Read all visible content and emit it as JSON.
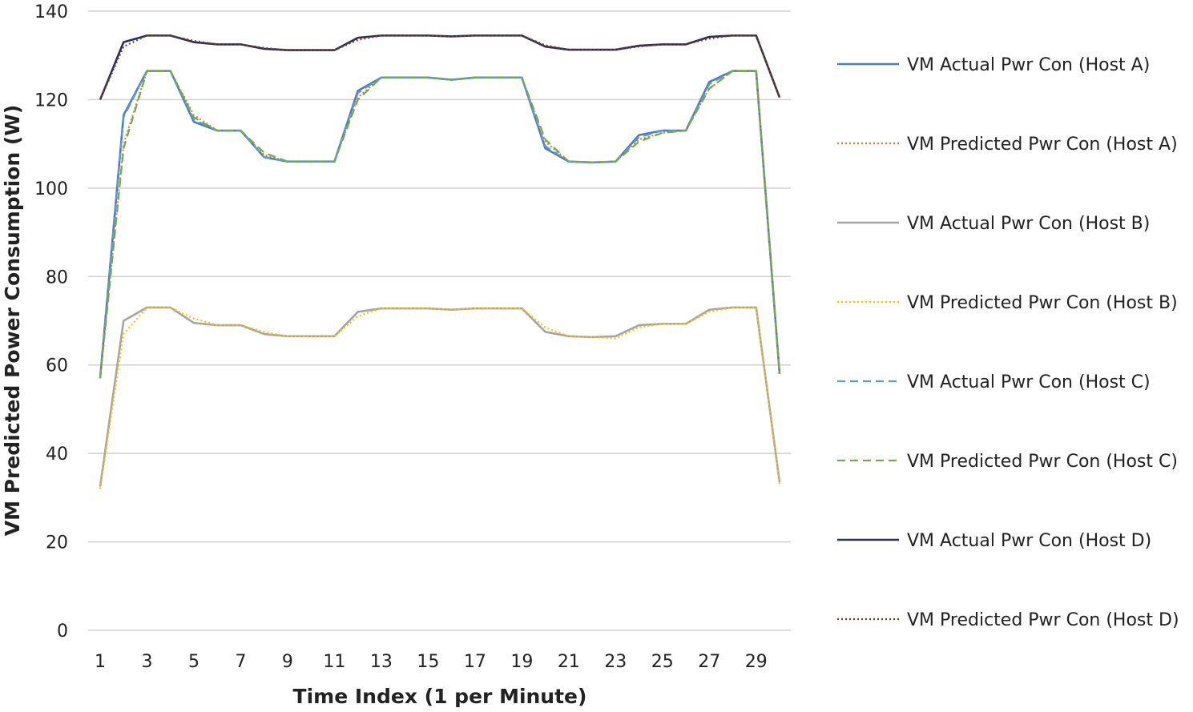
{
  "chart_data": {
    "type": "line",
    "xlabel": "Time Index (1 per Minute)",
    "ylabel": "VM Predicted Power Consumption (W)",
    "ylim": [
      0,
      140
    ],
    "xlim": [
      1,
      30
    ],
    "y_ticks": [
      0,
      20,
      40,
      60,
      80,
      100,
      120,
      140
    ],
    "x_ticks": [
      1,
      3,
      5,
      7,
      9,
      11,
      13,
      15,
      17,
      19,
      21,
      23,
      25,
      27,
      29
    ],
    "grid": true,
    "legend_position": "right",
    "x": [
      1,
      2,
      3,
      4,
      5,
      6,
      7,
      8,
      9,
      10,
      11,
      12,
      13,
      14,
      15,
      16,
      17,
      18,
      19,
      20,
      21,
      22,
      23,
      24,
      25,
      26,
      27,
      28,
      29,
      30
    ],
    "series": [
      {
        "name": "VM Actual Pwr Con (Host A)",
        "color": "#4a7ebb",
        "style": "solid",
        "values": [
          57,
          116.5,
          126.5,
          126.5,
          115,
          113,
          113,
          107,
          106,
          106,
          106,
          122,
          125,
          125,
          125,
          124.5,
          125,
          125,
          125,
          109,
          106,
          105.8,
          106,
          112,
          113,
          113,
          124,
          126.5,
          126.5,
          58
        ]
      },
      {
        "name": "VM Predicted Pwr Con (Host A)",
        "color": "#e07b39",
        "style": "dotted",
        "values": [
          57,
          110,
          126.5,
          126.5,
          116.5,
          113,
          113,
          107.5,
          106,
          106,
          106,
          120.5,
          125,
          125,
          125,
          124.5,
          125,
          125,
          125,
          110.5,
          106,
          105.8,
          106,
          111,
          112.5,
          113,
          122.5,
          126.5,
          126.5,
          58
        ]
      },
      {
        "name": "VM Actual Pwr Con (Host B)",
        "color": "#a5a5a5",
        "style": "solid",
        "values": [
          32.5,
          70,
          73,
          73,
          69.5,
          69,
          69,
          67,
          66.5,
          66.5,
          66.5,
          72,
          72.8,
          72.8,
          72.8,
          72.5,
          72.8,
          72.8,
          72.8,
          67.5,
          66.5,
          66.3,
          66.5,
          69,
          69.3,
          69.3,
          72.5,
          73,
          73,
          33.5
        ]
      },
      {
        "name": "VM Predicted Pwr Con (Host B)",
        "color": "#ffc000",
        "style": "dotted",
        "values": [
          32,
          67,
          73,
          73,
          70.5,
          69,
          69,
          67.5,
          66.5,
          66.5,
          66.5,
          71,
          72.8,
          72.8,
          72.8,
          72.5,
          72.8,
          72.8,
          72.8,
          68.5,
          66.5,
          66.3,
          66,
          68.5,
          69.3,
          69.3,
          72,
          73,
          73,
          33
        ]
      },
      {
        "name": "VM Actual Pwr Con (Host C)",
        "color": "#5b9bd5",
        "style": "dashed",
        "values": [
          57,
          116,
          126.5,
          126.5,
          115.5,
          113,
          113,
          107,
          106,
          106,
          106,
          121.5,
          125,
          125,
          125,
          124.5,
          125,
          125,
          125,
          109.5,
          106,
          105.8,
          106,
          111.5,
          113,
          113,
          123.5,
          126.5,
          126.5,
          58
        ]
      },
      {
        "name": "VM Predicted Pwr Con (Host C)",
        "color": "#70ad47",
        "style": "dashed",
        "values": [
          57,
          109,
          126.5,
          126.5,
          116,
          113,
          113,
          108,
          106,
          106,
          106,
          120,
          125,
          125,
          125,
          124.5,
          125,
          125,
          125,
          111,
          106,
          105.8,
          106,
          110.5,
          112.5,
          113,
          122.5,
          126.5,
          126.5,
          58
        ]
      },
      {
        "name": "VM Actual Pwr Con (Host D)",
        "color": "#24305e",
        "style": "solid",
        "values": [
          120,
          133,
          134.5,
          134.5,
          133,
          132.5,
          132.5,
          131.5,
          131.2,
          131.2,
          131.2,
          134,
          134.5,
          134.5,
          134.5,
          134.3,
          134.5,
          134.5,
          134.5,
          132,
          131.3,
          131.3,
          131.3,
          132.2,
          132.5,
          132.5,
          134.2,
          134.5,
          134.5,
          120.5
        ]
      },
      {
        "name": "VM Predicted Pwr Con (Host D)",
        "color": "#843c0c",
        "style": "dotted",
        "values": [
          120,
          132,
          134.5,
          134.5,
          133.3,
          132.5,
          132.5,
          131.7,
          131.2,
          131.2,
          131.2,
          133.5,
          134.5,
          134.5,
          134.5,
          134.3,
          134.5,
          134.5,
          134.5,
          132.3,
          131.3,
          131.3,
          131.3,
          132,
          132.5,
          132.5,
          133.8,
          134.5,
          134.5,
          120.5
        ]
      }
    ]
  }
}
